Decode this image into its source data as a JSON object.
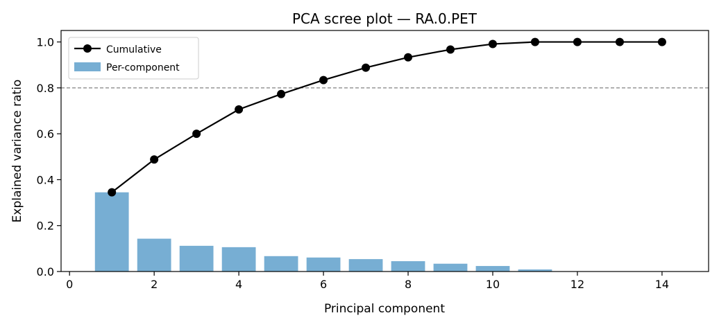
{
  "chart_data": {
    "type": "bar",
    "title": "PCA scree plot — RA.0.PET",
    "xlabel": "Principal component",
    "ylabel": "Explained variance ratio",
    "xlim": [
      -0.2,
      15.1
    ],
    "ylim": [
      0,
      1.05
    ],
    "xticks": [
      0,
      2,
      4,
      6,
      8,
      10,
      12,
      14
    ],
    "yticks": [
      0.0,
      0.2,
      0.4,
      0.6,
      0.8,
      1.0
    ],
    "grid": false,
    "legend_placement": "top-left",
    "threshold": 0.8,
    "x": [
      1,
      2,
      3,
      4,
      5,
      6,
      7,
      8,
      9,
      10,
      11,
      12,
      13,
      14
    ],
    "series": [
      {
        "name": "Cumulative",
        "type": "line",
        "color": "#000000",
        "values": [
          0.345,
          0.488,
          0.6,
          0.706,
          0.773,
          0.834,
          0.888,
          0.933,
          0.967,
          0.991,
          1.0,
          1.0,
          1.0,
          1.0
        ]
      },
      {
        "name": "Per-component",
        "type": "bar",
        "color": "#77aed3",
        "values": [
          0.345,
          0.143,
          0.112,
          0.106,
          0.067,
          0.061,
          0.054,
          0.045,
          0.034,
          0.024,
          0.009,
          0.0,
          0.0,
          0.0
        ]
      }
    ],
    "threshold_color": "#808080"
  }
}
